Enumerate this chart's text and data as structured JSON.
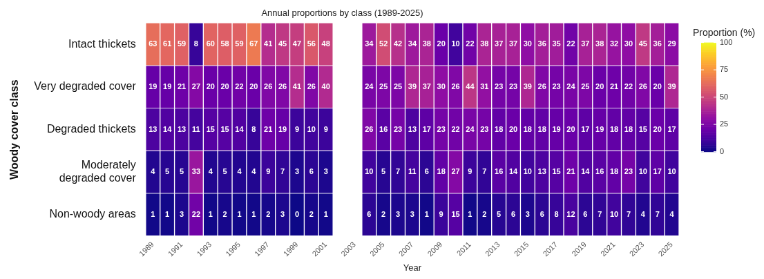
{
  "chart_data": {
    "type": "heatmap",
    "title": "Annual proportions by class (1989-2025)",
    "xlabel": "Year",
    "ylabel": "Woody cover class",
    "clabel": "Proportion (%)",
    "categories": [
      "1989",
      null,
      "1991",
      null,
      "1993",
      null,
      "1995",
      null,
      "1997",
      null,
      "1999",
      null,
      "2001",
      null,
      "2003",
      null,
      "2005",
      null,
      "2007",
      null,
      "2009",
      null,
      "2011",
      null,
      "2013",
      null,
      "2015",
      null,
      "2017",
      null,
      "2019",
      null,
      "2021",
      null,
      "2023",
      null,
      "2025"
    ],
    "y_categories": [
      "Intact thickets",
      "Very degraded cover",
      "Degraded thickets",
      "Moderately degraded cover",
      "Non-woody areas"
    ],
    "cells": [
      [
        63,
        61,
        59,
        8,
        60,
        58,
        59,
        67,
        41,
        45,
        47,
        56,
        48,
        null,
        null,
        34,
        52,
        42,
        34,
        38,
        20,
        10,
        22,
        38,
        37,
        37,
        30,
        36,
        35,
        22,
        37,
        38,
        32,
        30,
        45,
        36,
        29
      ],
      [
        19,
        19,
        21,
        27,
        20,
        20,
        22,
        20,
        26,
        26,
        41,
        26,
        40,
        null,
        null,
        24,
        25,
        25,
        39,
        37,
        30,
        26,
        44,
        31,
        23,
        23,
        39,
        26,
        23,
        24,
        25,
        20,
        21,
        22,
        26,
        20,
        39
      ],
      [
        13,
        14,
        13,
        11,
        15,
        15,
        14,
        8,
        21,
        19,
        9,
        10,
        9,
        null,
        null,
        26,
        16,
        23,
        13,
        17,
        23,
        22,
        24,
        23,
        18,
        20,
        18,
        18,
        19,
        20,
        17,
        19,
        18,
        18,
        15,
        20,
        17
      ],
      [
        4,
        5,
        5,
        33,
        4,
        5,
        4,
        4,
        9,
        7,
        3,
        6,
        3,
        null,
        null,
        10,
        5,
        7,
        11,
        6,
        18,
        27,
        9,
        7,
        16,
        14,
        10,
        13,
        15,
        21,
        14,
        16,
        18,
        23,
        10,
        17,
        10
      ],
      [
        1,
        1,
        3,
        22,
        1,
        2,
        1,
        1,
        2,
        3,
        0,
        2,
        1,
        null,
        null,
        6,
        2,
        3,
        3,
        1,
        9,
        15,
        1,
        2,
        5,
        6,
        3,
        6,
        8,
        12,
        6,
        7,
        10,
        7,
        4,
        7,
        4
      ]
    ],
    "clim": [
      0,
      100
    ],
    "cticks": [
      0,
      25,
      50,
      75,
      100
    ],
    "data_labels": true,
    "grid": false
  }
}
